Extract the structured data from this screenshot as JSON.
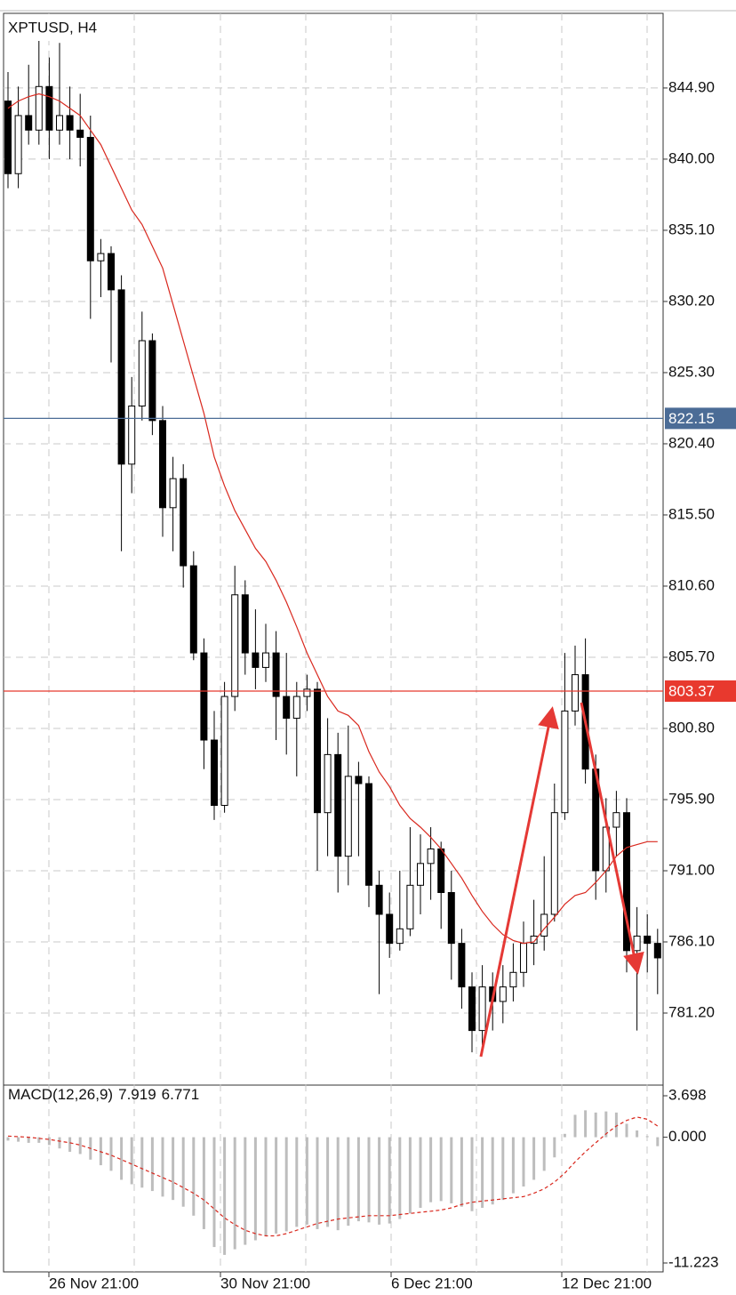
{
  "chart_data": {
    "type": "candlestick",
    "title": "XPTUSD, H4",
    "up_color": "#ffffff",
    "down_color": "#000000",
    "open": [
      844,
      839,
      843,
      842,
      845,
      842,
      843,
      842,
      841.5,
      833,
      833.5,
      831,
      819,
      823,
      827.5,
      822,
      816,
      818,
      812,
      806,
      800,
      795.5,
      803,
      810,
      806,
      805,
      806,
      803,
      801.5,
      803,
      803.5,
      795,
      799,
      792,
      797.5,
      797,
      790,
      788,
      786,
      787,
      790,
      791.5,
      792.5,
      789.5,
      786,
      783,
      780,
      783,
      782,
      783,
      784,
      786,
      786.5,
      788,
      795,
      802,
      804.5,
      798,
      791,
      794,
      795,
      785.5,
      786.5,
      786
    ],
    "high": [
      846,
      845,
      846.5,
      849,
      847,
      848,
      845,
      844.5,
      843,
      834.5,
      834,
      832,
      825,
      829.5,
      828,
      823,
      819.5,
      819,
      813,
      807,
      802,
      804,
      812,
      811,
      809,
      808,
      807.5,
      806,
      804,
      804.5,
      804,
      801.5,
      800.5,
      801,
      798.5,
      797.5,
      791,
      789.5,
      791,
      794,
      793.5,
      794,
      793,
      791,
      787,
      784,
      784.5,
      784,
      784.5,
      786,
      787.5,
      789,
      792,
      797,
      806,
      806.5,
      807,
      799,
      796,
      796.5,
      796,
      788.5,
      788,
      787
    ],
    "low": [
      838,
      838,
      841,
      841,
      840,
      841,
      840,
      839.5,
      829,
      830.5,
      826,
      813,
      817,
      822,
      821,
      814,
      813,
      810.5,
      805.5,
      798,
      794.5,
      795,
      802,
      804.5,
      803.5,
      804,
      800,
      799,
      797.5,
      802,
      791,
      792,
      789.5,
      790,
      792,
      788.5,
      782.5,
      785,
      785.5,
      786.5,
      788,
      789,
      787,
      783.5,
      781.5,
      778.5,
      779,
      780,
      780.5,
      782,
      783,
      784.5,
      785.5,
      787.5,
      794.5,
      801,
      797,
      789,
      789.5,
      792,
      784,
      780,
      784,
      782.5
    ],
    "close": [
      839,
      843,
      842,
      845,
      842,
      843,
      842,
      841.5,
      833,
      833.5,
      831,
      819,
      823,
      827.5,
      822,
      816,
      818,
      812,
      806,
      800,
      795.5,
      803,
      810,
      806,
      805,
      806,
      803,
      801.5,
      803,
      803.5,
      795,
      799,
      792,
      797.5,
      797,
      790,
      788,
      786,
      787,
      790,
      791.5,
      792.5,
      789.5,
      786,
      783,
      780,
      783,
      782,
      783,
      784,
      786,
      786.5,
      788,
      795,
      802,
      804.5,
      798,
      791,
      794,
      795,
      785.5,
      786.5,
      786,
      785
    ],
    "ma": {
      "color": "#d9281e",
      "values": [
        843.5,
        844,
        844.3,
        844.5,
        844.3,
        844,
        843.5,
        843,
        842,
        841,
        839.5,
        838,
        836.5,
        835.5,
        834,
        832.5,
        830,
        827.5,
        825,
        822.5,
        819.5,
        817.5,
        815.8,
        814.5,
        813.2,
        812.3,
        811,
        809.5,
        807.8,
        806,
        804.5,
        803,
        802,
        801.7,
        801,
        799.2,
        797.8,
        796.8,
        795.5,
        794.6,
        794,
        793.3,
        792.5,
        791.5,
        790.5,
        789.3,
        788.2,
        787.3,
        786.6,
        786.2,
        786,
        786.1,
        787,
        787.8,
        788.7,
        789.3,
        789.5,
        790.2,
        791,
        792,
        792.6,
        792.8,
        793,
        793
      ]
    },
    "ylim": [
      776.24,
      850.04
    ],
    "yticks": [
      {
        "value": 844.9,
        "label": "844.90"
      },
      {
        "value": 840,
        "label": "840.00"
      },
      {
        "value": 835.1,
        "label": "835.10"
      },
      {
        "value": 830.2,
        "label": "830.20"
      },
      {
        "value": 825.3,
        "label": "825.30"
      },
      {
        "value": 820.4,
        "label": "820.40"
      },
      {
        "value": 815.5,
        "label": "815.50"
      },
      {
        "value": 810.6,
        "label": "810.60"
      },
      {
        "value": 805.7,
        "label": "805.70"
      },
      {
        "value": 800.8,
        "label": "800.80"
      },
      {
        "value": 795.9,
        "label": "795.90"
      },
      {
        "value": 791,
        "label": "791.00"
      },
      {
        "value": 786.1,
        "label": "786.10"
      },
      {
        "value": 781.2,
        "label": "781.20"
      }
    ],
    "price_lines": [
      {
        "value": 822.15,
        "color": "#4b6c96"
      },
      {
        "value": 803.37,
        "color": "#e8392e"
      }
    ],
    "x_labels": [
      "26 Nov 21:00",
      "30 Nov 21:00",
      "6 Dec 21:00",
      "12 Dec 21:00"
    ],
    "grid": true,
    "macd": {
      "label": "MACD(12,26,9)",
      "readouts": [
        7.919,
        6.771
      ],
      "histogram_color": "#bdbdbd",
      "signal_color": "#d9281e",
      "histogram": [
        -0.3,
        -0.4,
        -0.5,
        -0.5,
        -0.7,
        -1.0,
        -1.3,
        -1.5,
        -2.0,
        -2.5,
        -3.0,
        -3.8,
        -4.2,
        -4.5,
        -4.8,
        -5.3,
        -5.6,
        -6.2,
        -7.0,
        -8.2,
        -9.8,
        -10.5,
        -10.0,
        -9.6,
        -9.2,
        -8.8,
        -8.6,
        -8.4,
        -8.0,
        -7.8,
        -8.2,
        -8.0,
        -8.3,
        -7.9,
        -7.5,
        -7.6,
        -7.8,
        -7.7,
        -7.3,
        -6.8,
        -6.3,
        -5.8,
        -5.7,
        -5.9,
        -6.2,
        -6.6,
        -6.3,
        -6.0,
        -5.6,
        -5.0,
        -4.4,
        -3.8,
        -3.0,
        -1.8,
        0.3,
        2.0,
        2.4,
        2.2,
        2.3,
        2.2,
        1.2,
        0.6,
        0.1,
        -0.8
      ],
      "signal": [
        0.1,
        0.05,
        0,
        -0.1,
        -0.2,
        -0.35,
        -0.5,
        -0.7,
        -1.0,
        -1.3,
        -1.6,
        -2.0,
        -2.4,
        -2.8,
        -3.2,
        -3.6,
        -4.0,
        -4.5,
        -5.0,
        -5.6,
        -6.4,
        -7.2,
        -7.8,
        -8.3,
        -8.6,
        -8.8,
        -8.8,
        -8.6,
        -8.3,
        -8.0,
        -7.7,
        -7.5,
        -7.3,
        -7.2,
        -7.1,
        -7.0,
        -7.0,
        -7.0,
        -6.9,
        -6.8,
        -6.7,
        -6.6,
        -6.5,
        -6.3,
        -6.0,
        -5.8,
        -5.7,
        -5.6,
        -5.5,
        -5.4,
        -5.3,
        -5.0,
        -4.6,
        -4.0,
        -3.2,
        -2.2,
        -1.3,
        -0.5,
        0.3,
        1.0,
        1.5,
        1.8,
        1.6,
        1.0
      ],
      "ylim": [
        -11.223,
        3.698
      ],
      "yticks": [
        3.698,
        {
          "value": 0,
          "label": "0.000"
        },
        -11.223
      ]
    }
  }
}
